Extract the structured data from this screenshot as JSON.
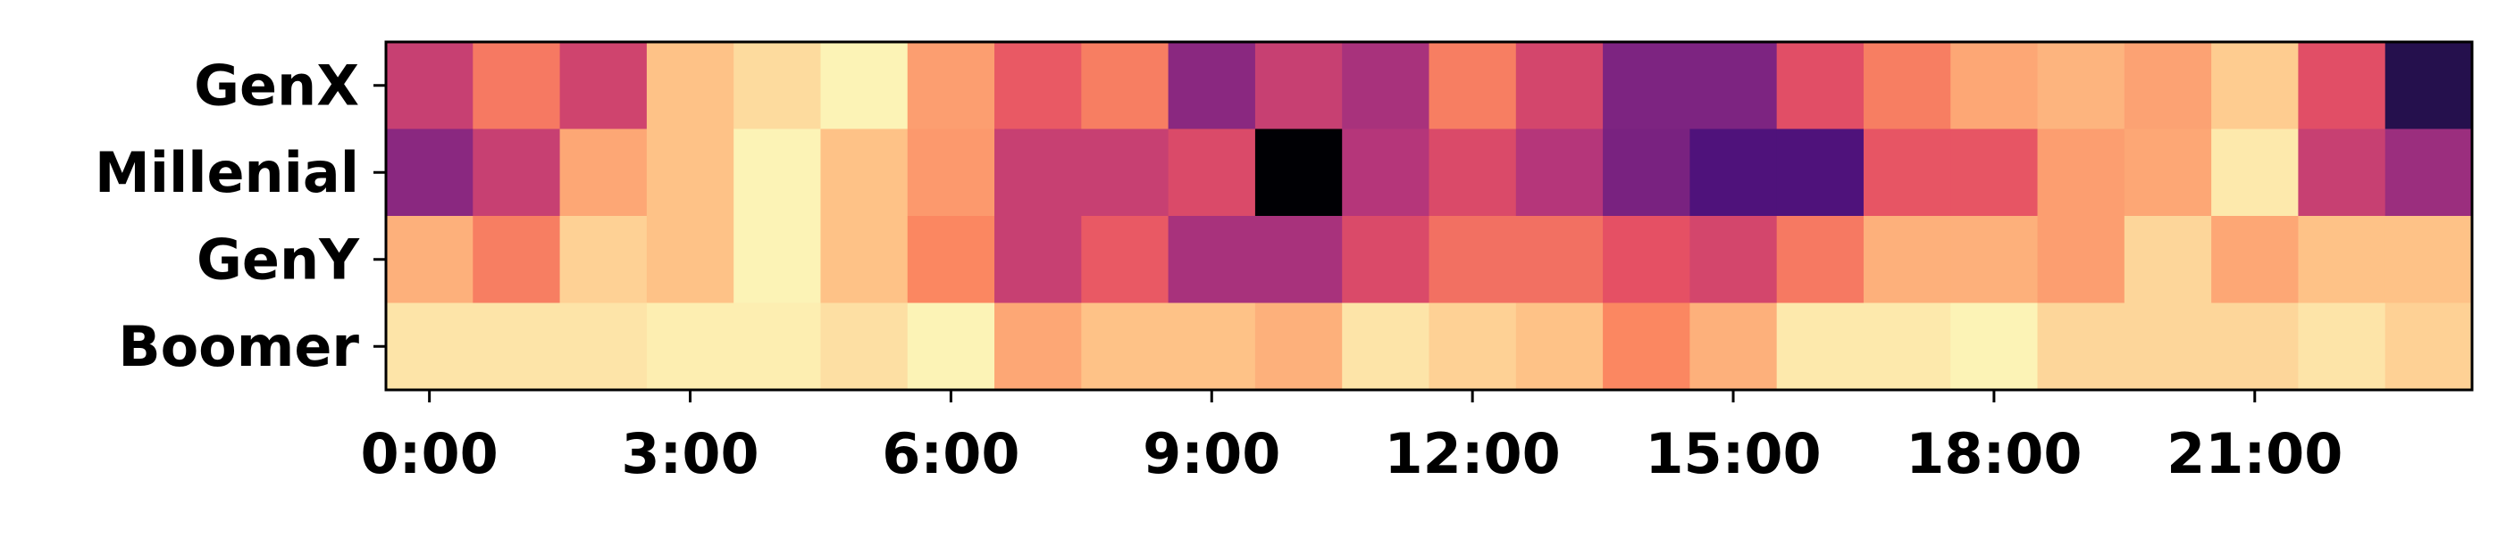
{
  "chart_data": {
    "type": "heatmap",
    "colormap": "magma",
    "title": "",
    "xlabel": "",
    "ylabel": "",
    "rows": [
      "GenX",
      "Millenial",
      "GenY",
      "Boomer"
    ],
    "columns": [
      "0:00",
      "1:00",
      "2:00",
      "3:00",
      "4:00",
      "5:00",
      "6:00",
      "7:00",
      "8:00",
      "9:00",
      "10:00",
      "11:00",
      "12:00",
      "13:00",
      "14:00",
      "15:00",
      "16:00",
      "17:00",
      "18:00",
      "19:00",
      "20:00",
      "21:00",
      "22:00",
      "23:00"
    ],
    "x_tick_labels": [
      "0:00",
      "3:00",
      "6:00",
      "9:00",
      "12:00",
      "15:00",
      "18:00",
      "21:00"
    ],
    "x_tick_positions": [
      0,
      3,
      6,
      9,
      12,
      15,
      18,
      21
    ],
    "values": [
      [
        0.55,
        0.72,
        0.57,
        0.88,
        0.93,
        0.98,
        0.8,
        0.65,
        0.73,
        0.4,
        0.55,
        0.47,
        0.73,
        0.58,
        0.37,
        0.37,
        0.62,
        0.73,
        0.82,
        0.85,
        0.81,
        0.9,
        0.62,
        0.15
      ],
      [
        0.4,
        0.55,
        0.82,
        0.88,
        0.98,
        0.88,
        0.79,
        0.55,
        0.55,
        0.6,
        0.0,
        0.5,
        0.6,
        0.5,
        0.36,
        0.25,
        0.25,
        0.64,
        0.64,
        0.8,
        0.82,
        0.96,
        0.55,
        0.44
      ],
      [
        0.84,
        0.73,
        0.91,
        0.88,
        0.98,
        0.88,
        0.75,
        0.55,
        0.65,
        0.47,
        0.47,
        0.6,
        0.7,
        0.7,
        0.63,
        0.58,
        0.72,
        0.84,
        0.84,
        0.8,
        0.92,
        0.82,
        0.88,
        0.88
      ],
      [
        0.95,
        0.95,
        0.95,
        0.97,
        0.97,
        0.94,
        0.98,
        0.82,
        0.88,
        0.88,
        0.84,
        0.95,
        0.91,
        0.88,
        0.75,
        0.84,
        0.96,
        0.96,
        0.98,
        0.92,
        0.92,
        0.92,
        0.95,
        0.91
      ]
    ],
    "grid": false,
    "legend": "none",
    "colorbar": false
  }
}
